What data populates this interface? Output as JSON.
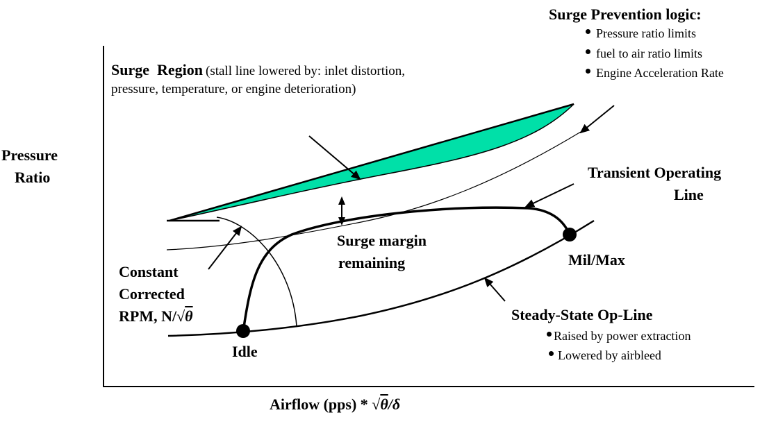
{
  "colors": {
    "surge_fill": "#00e0a8",
    "ink": "#000000",
    "background": "#ffffff"
  },
  "axes": {
    "y_label_line1": "Pressure",
    "y_label_line2": "Ratio",
    "x_label_prefix": "Airflow (pps) * ",
    "x_label_theta": "θ",
    "x_label_delta": "/δ"
  },
  "surge_region": {
    "title": "Surge  Region",
    "note_line1": "(stall line lowered by: inlet distortion,",
    "note_line2": "pressure, temperature, or engine deterioration)"
  },
  "surge_prevention": {
    "title": "Surge Prevention logic:",
    "items": [
      "Pressure ratio limits",
      "fuel to air ratio limits",
      "Engine Acceleration Rate"
    ]
  },
  "transient": {
    "line1": "Transient Operating",
    "line2": "Line"
  },
  "surge_margin": {
    "line1": "Surge margin",
    "line2": "remaining"
  },
  "constant_rpm": {
    "line1": "Constant",
    "line2": "Corrected",
    "line3_prefix": "RPM, N/",
    "line3_theta": "θ"
  },
  "points": {
    "idle": "Idle",
    "milmax": "Mil/Max"
  },
  "steady_state": {
    "title": "Steady-State Op-Line",
    "items": [
      "Raised by power extraction",
      "Lowered by airbleed"
    ]
  }
}
